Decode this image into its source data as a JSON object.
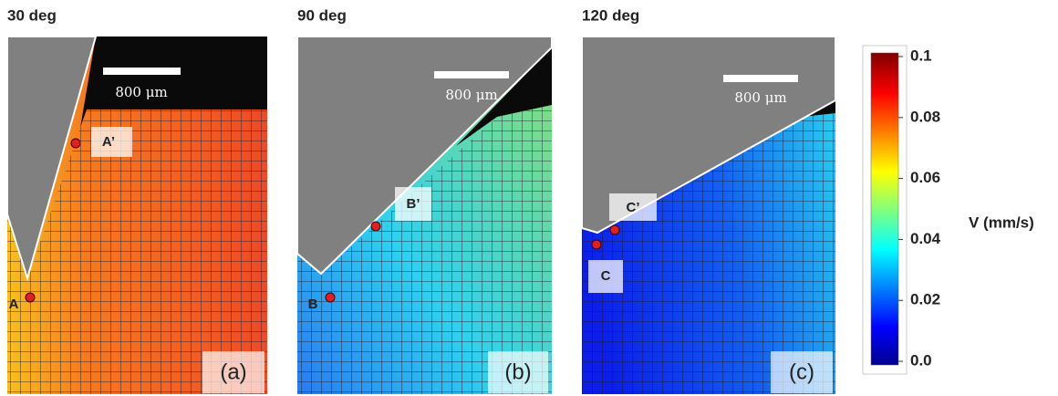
{
  "panels": [
    {
      "title": "30 deg",
      "scale_bar": "800 μm",
      "points": [
        "A",
        "A’"
      ],
      "label": "(a)"
    },
    {
      "title": "90 deg",
      "scale_bar": "800 μm",
      "points": [
        "B",
        "B’"
      ],
      "label": "(b)"
    },
    {
      "title": "120 deg",
      "scale_bar": "800 μm",
      "points": [
        "C",
        "C’"
      ],
      "label": "(c)"
    }
  ],
  "colorbar": {
    "label": "V (mm/s)",
    "lim": [
      0,
      0.1
    ],
    "ticks": [
      0.1,
      0.08,
      0.06,
      0.04,
      0.02,
      {
        "value": 0,
        "label": "0.0"
      }
    ]
  }
}
